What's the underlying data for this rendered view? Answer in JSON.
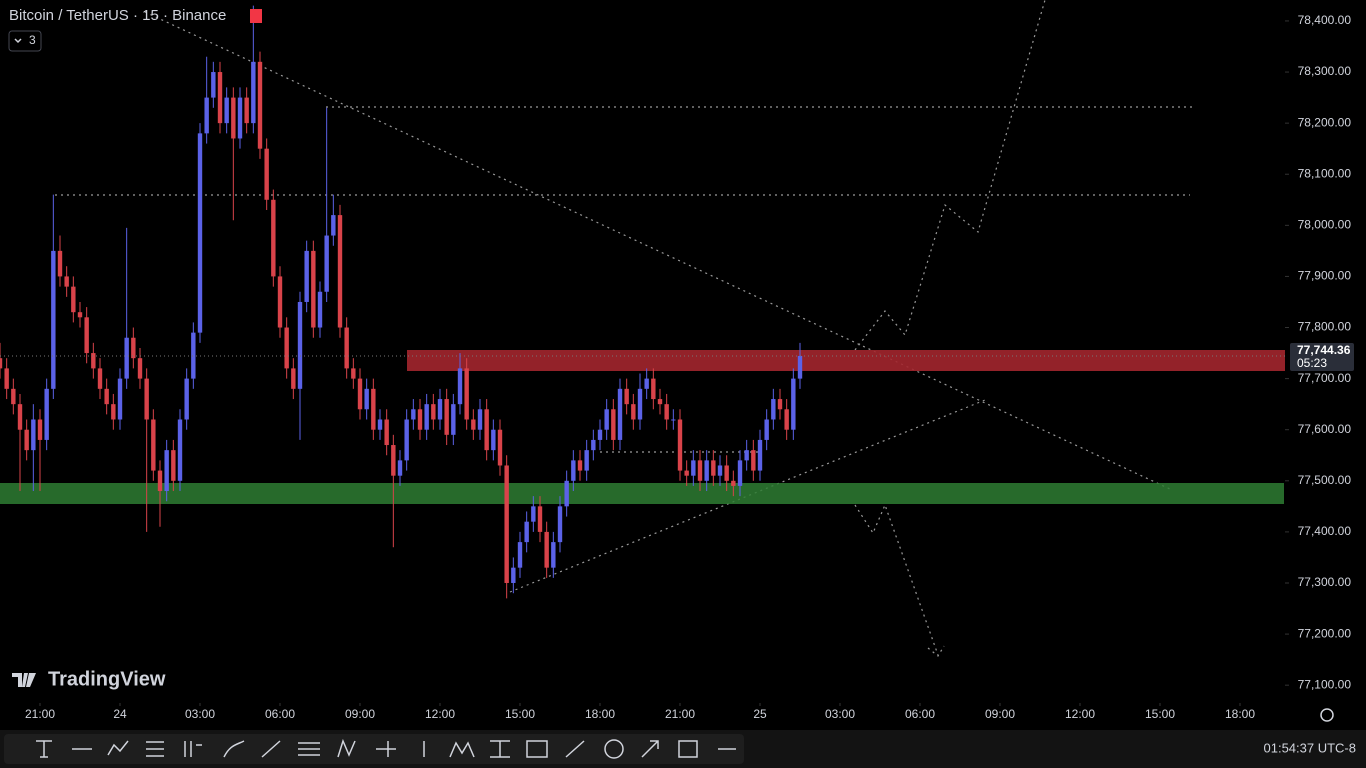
{
  "header": {
    "symbol": "Bitcoin / TetherUS · 15 · Binance",
    "badge": "3",
    "logo": "TradingView"
  },
  "status": {
    "clock": "01:54:37 UTC-8"
  },
  "chart_data": {
    "type": "candlestick",
    "up_color": "#5b62e8",
    "down_color": "#d9434a",
    "ylim": [
      77071,
      78441
    ],
    "xlim": [
      0,
      192.75
    ],
    "yticks": [
      {
        "value": 78400,
        "label": "78,400.00"
      },
      {
        "value": 78300,
        "label": "78,300.00"
      },
      {
        "value": 78200,
        "label": "78,200.00"
      },
      {
        "value": 78100,
        "label": "78,100.00"
      },
      {
        "value": 78000,
        "label": "78,000.00"
      },
      {
        "value": 77900,
        "label": "77,900.00"
      },
      {
        "value": 77800,
        "label": "77,800.00"
      },
      {
        "value": 77700,
        "label": "77,700.00"
      },
      {
        "value": 77600,
        "label": "77,600.00"
      },
      {
        "value": 77500,
        "label": "77,500.00"
      },
      {
        "value": 77400,
        "label": "77,400.00"
      },
      {
        "value": 77300,
        "label": "77,300.00"
      },
      {
        "value": 77200,
        "label": "77,200.00"
      },
      {
        "value": 77100,
        "label": "77,100.00"
      }
    ],
    "xticks": [
      {
        "value": 6,
        "label": "21:00"
      },
      {
        "value": 18,
        "label": "24"
      },
      {
        "value": 30,
        "label": "03:00"
      },
      {
        "value": 42,
        "label": "06:00"
      },
      {
        "value": 54,
        "label": "09:00"
      },
      {
        "value": 66,
        "label": "12:00"
      },
      {
        "value": 78,
        "label": "15:00"
      },
      {
        "value": 90,
        "label": "18:00"
      },
      {
        "value": 102,
        "label": "21:00"
      },
      {
        "value": 114,
        "label": "25"
      },
      {
        "value": 126,
        "label": "03:00"
      },
      {
        "value": 138,
        "label": "06:00"
      },
      {
        "value": 150,
        "label": "09:00"
      },
      {
        "value": 162,
        "label": "12:00"
      },
      {
        "value": 174,
        "label": "15:00"
      },
      {
        "value": 186,
        "label": "18:00"
      }
    ],
    "last_price": {
      "value": 77744.36,
      "label": "77,744.36"
    },
    "countdown": "05:23",
    "candles": [
      [
        77740,
        77770,
        77700,
        77720
      ],
      [
        77720,
        77740,
        77660,
        77680
      ],
      [
        77680,
        77700,
        77630,
        77650
      ],
      [
        77650,
        77670,
        77480,
        77600
      ],
      [
        77600,
        77620,
        77540,
        77560
      ],
      [
        77560,
        77650,
        77480,
        77620
      ],
      [
        77620,
        77640,
        77480,
        77580
      ],
      [
        77580,
        77700,
        77560,
        77680
      ],
      [
        77680,
        78060,
        77660,
        77950
      ],
      [
        77950,
        77980,
        77880,
        77900
      ],
      [
        77900,
        77920,
        77860,
        77880
      ],
      [
        77880,
        77900,
        77810,
        77830
      ],
      [
        77830,
        77850,
        77800,
        77820
      ],
      [
        77820,
        77840,
        77730,
        77750
      ],
      [
        77750,
        77770,
        77700,
        77720
      ],
      [
        77720,
        77740,
        77660,
        77680
      ],
      [
        77680,
        77700,
        77630,
        77650
      ],
      [
        77650,
        77670,
        77600,
        77620
      ],
      [
        77620,
        77720,
        77600,
        77700
      ],
      [
        77700,
        77995,
        77680,
        77780
      ],
      [
        77780,
        77800,
        77720,
        77740
      ],
      [
        77740,
        77760,
        77680,
        77700
      ],
      [
        77700,
        77720,
        77400,
        77620
      ],
      [
        77620,
        77640,
        77500,
        77520
      ],
      [
        77520,
        77540,
        77410,
        77480
      ],
      [
        77480,
        77580,
        77460,
        77560
      ],
      [
        77560,
        77580,
        77480,
        77500
      ],
      [
        77500,
        77640,
        77480,
        77620
      ],
      [
        77620,
        77720,
        77600,
        77700
      ],
      [
        77700,
        77810,
        77680,
        77790
      ],
      [
        77790,
        78200,
        77770,
        78180
      ],
      [
        78180,
        78330,
        78160,
        78250
      ],
      [
        78250,
        78320,
        78230,
        78300
      ],
      [
        78300,
        78320,
        78180,
        78200
      ],
      [
        78200,
        78270,
        78180,
        78250
      ],
      [
        78250,
        78270,
        78010,
        78170
      ],
      [
        78170,
        78270,
        78150,
        78250
      ],
      [
        78250,
        78270,
        78180,
        78200
      ],
      [
        78200,
        78430,
        78180,
        78320
      ],
      [
        78320,
        78340,
        78130,
        78150
      ],
      [
        78150,
        78170,
        78030,
        78050
      ],
      [
        78050,
        78070,
        77880,
        77900
      ],
      [
        77900,
        77920,
        77780,
        77800
      ],
      [
        77800,
        77820,
        77700,
        77720
      ],
      [
        77720,
        77740,
        77660,
        77680
      ],
      [
        77680,
        77870,
        77580,
        77850
      ],
      [
        77850,
        77970,
        77830,
        77950
      ],
      [
        77950,
        77970,
        77780,
        77800
      ],
      [
        77800,
        77890,
        77780,
        77870
      ],
      [
        77870,
        78230,
        77850,
        77980
      ],
      [
        77980,
        78060,
        77960,
        78020
      ],
      [
        78020,
        78040,
        77780,
        77800
      ],
      [
        77800,
        77820,
        77700,
        77720
      ],
      [
        77720,
        77740,
        77680,
        77700
      ],
      [
        77700,
        77720,
        77620,
        77640
      ],
      [
        77640,
        77700,
        77620,
        77680
      ],
      [
        77680,
        77700,
        77580,
        77600
      ],
      [
        77600,
        77640,
        77580,
        77620
      ],
      [
        77620,
        77640,
        77550,
        77570
      ],
      [
        77570,
        77590,
        77370,
        77510
      ],
      [
        77510,
        77560,
        77490,
        77540
      ],
      [
        77540,
        77640,
        77520,
        77620
      ],
      [
        77620,
        77660,
        77600,
        77640
      ],
      [
        77640,
        77660,
        77580,
        77600
      ],
      [
        77600,
        77670,
        77580,
        77650
      ],
      [
        77650,
        77670,
        77600,
        77620
      ],
      [
        77620,
        77680,
        77600,
        77660
      ],
      [
        77660,
        77680,
        77570,
        77590
      ],
      [
        77590,
        77670,
        77570,
        77650
      ],
      [
        77650,
        77750,
        77630,
        77720
      ],
      [
        77720,
        77740,
        77600,
        77620
      ],
      [
        77620,
        77640,
        77580,
        77600
      ],
      [
        77600,
        77660,
        77580,
        77640
      ],
      [
        77640,
        77660,
        77540,
        77560
      ],
      [
        77560,
        77620,
        77540,
        77600
      ],
      [
        77600,
        77620,
        77510,
        77530
      ],
      [
        77530,
        77550,
        77270,
        77300
      ],
      [
        77300,
        77350,
        77280,
        77330
      ],
      [
        77330,
        77400,
        77310,
        77380
      ],
      [
        77380,
        77440,
        77360,
        77420
      ],
      [
        77420,
        77470,
        77400,
        77450
      ],
      [
        77450,
        77470,
        77380,
        77400
      ],
      [
        77400,
        77420,
        77310,
        77330
      ],
      [
        77330,
        77400,
        77310,
        77380
      ],
      [
        77380,
        77470,
        77360,
        77450
      ],
      [
        77450,
        77520,
        77430,
        77500
      ],
      [
        77500,
        77560,
        77480,
        77540
      ],
      [
        77540,
        77560,
        77500,
        77520
      ],
      [
        77520,
        77580,
        77500,
        77560
      ],
      [
        77560,
        77600,
        77540,
        77580
      ],
      [
        77580,
        77620,
        77560,
        77600
      ],
      [
        77600,
        77660,
        77580,
        77640
      ],
      [
        77640,
        77660,
        77560,
        77580
      ],
      [
        77580,
        77700,
        77560,
        77680
      ],
      [
        77680,
        77700,
        77630,
        77650
      ],
      [
        77650,
        77670,
        77600,
        77620
      ],
      [
        77620,
        77710,
        77600,
        77680
      ],
      [
        77680,
        77720,
        77660,
        77700
      ],
      [
        77700,
        77720,
        77640,
        77660
      ],
      [
        77660,
        77680,
        77630,
        77650
      ],
      [
        77650,
        77670,
        77600,
        77620
      ],
      [
        77620,
        77640,
        77600,
        77620
      ],
      [
        77620,
        77640,
        77500,
        77520
      ],
      [
        77520,
        77540,
        77490,
        77510
      ],
      [
        77510,
        77560,
        77490,
        77540
      ],
      [
        77540,
        77560,
        77480,
        77500
      ],
      [
        77500,
        77560,
        77480,
        77540
      ],
      [
        77540,
        77560,
        77490,
        77510
      ],
      [
        77510,
        77550,
        77490,
        77530
      ],
      [
        77530,
        77550,
        77480,
        77500
      ],
      [
        77500,
        77520,
        77470,
        77490
      ],
      [
        77490,
        77560,
        77470,
        77540
      ],
      [
        77540,
        77580,
        77520,
        77560
      ],
      [
        77560,
        77580,
        77500,
        77520
      ],
      [
        77520,
        77600,
        77500,
        77580
      ],
      [
        77580,
        77640,
        77560,
        77620
      ],
      [
        77620,
        77680,
        77600,
        77660
      ],
      [
        77660,
        77680,
        77620,
        77640
      ],
      [
        77640,
        77660,
        77580,
        77600
      ],
      [
        77600,
        77720,
        77580,
        77700
      ],
      [
        77700,
        77770,
        77680,
        77744.36
      ]
    ]
  }
}
